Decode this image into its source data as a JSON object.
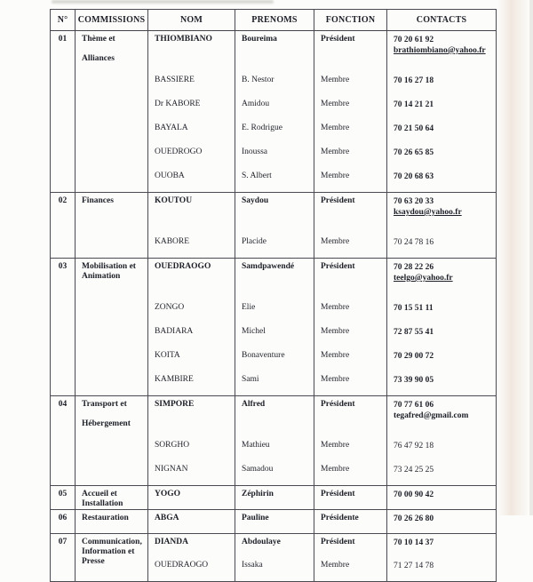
{
  "document": {
    "kind": "scanned committee roster table",
    "columns": [
      "N°",
      "COMMISSIONS",
      "NOM",
      "PRENOMS",
      "FONCTION",
      "CONTACTS"
    ],
    "sections": [
      {
        "no": "01",
        "commission_lines": [
          "Thème et",
          "",
          "Alliances"
        ],
        "members": [
          {
            "nom": "THIOMBIANO",
            "prenoms": "Boureima",
            "fonction": "Président",
            "president": true,
            "gap_after": true,
            "contacts": [
              {
                "text": "70 20 61 92",
                "bold": true
              },
              {
                "text": "brathiombiano@yahoo.fr",
                "bold": true,
                "underline": true
              }
            ]
          },
          {
            "nom": "BASSIERE",
            "prenoms": "B. Nestor",
            "fonction": "Membre",
            "contacts": [
              {
                "text": "70 16 27 18",
                "bold": true
              }
            ]
          },
          {
            "nom": "Dr KABORE",
            "prenoms": "Amidou",
            "fonction": "Membre",
            "contacts": [
              {
                "text": "70 14 21 21",
                "bold": true
              }
            ]
          },
          {
            "nom": "BAYALA",
            "prenoms": "E. Rodrigue",
            "fonction": "Membre",
            "contacts": [
              {
                "text": "70 21 50 64",
                "bold": true
              }
            ]
          },
          {
            "nom": "OUEDROGO",
            "prenoms": "Inoussa",
            "fonction": "Membre",
            "contacts": [
              {
                "text": "70 26 65 85",
                "bold": true
              }
            ]
          },
          {
            "nom": "OUOBA",
            "prenoms": "S. Albert",
            "fonction": "Membre",
            "contacts": [
              {
                "text": "70 20 68 63",
                "bold": true
              }
            ]
          }
        ]
      },
      {
        "no": "02",
        "commission_lines": [
          "Finances"
        ],
        "members": [
          {
            "nom": "KOUTOU",
            "prenoms": "Saydou",
            "fonction": "Président",
            "president": true,
            "gap_after": true,
            "contacts": [
              {
                "text": "70 63 20 33",
                "bold": true
              },
              {
                "text": "ksaydou@yahoo.fr",
                "bold": true,
                "underline": true
              }
            ]
          },
          {
            "nom": "KABORE",
            "prenoms": "Placide",
            "fonction": "Membre",
            "contacts": [
              {
                "text": "70 24 78 16"
              }
            ]
          }
        ]
      },
      {
        "no": "03",
        "commission_lines": [
          "Mobilisation et",
          "Animation"
        ],
        "members": [
          {
            "nom": "OUEDRAOGO",
            "prenoms": "Samdpawendé",
            "fonction": "Président",
            "president": true,
            "gap_after": true,
            "contacts": [
              {
                "text": "70 28 22 26",
                "bold": true
              },
              {
                "text": "teelgo@yahoo.fr",
                "bold": true,
                "underline": true
              }
            ]
          },
          {
            "nom": "ZONGO",
            "prenoms": "Elie",
            "fonction": "Membre",
            "contacts": [
              {
                "text": "70 15 51 11",
                "bold": true
              }
            ]
          },
          {
            "nom": "BADIARA",
            "prenoms": "Michel",
            "fonction": "Membre",
            "contacts": [
              {
                "text": "72 87 55 41",
                "bold": true
              }
            ]
          },
          {
            "nom": "KOITA",
            "prenoms": "Bonaventure",
            "fonction": "Membre",
            "contacts": [
              {
                "text": "70 29 00 72",
                "bold": true
              }
            ]
          },
          {
            "nom": "KAMBIRE",
            "prenoms": "Sami",
            "fonction": "Membre",
            "contacts": [
              {
                "text": "73 39 90 05",
                "bold": true
              }
            ]
          }
        ]
      },
      {
        "no": "04",
        "commission_lines": [
          "Transport et",
          "",
          "Hébergement"
        ],
        "members": [
          {
            "nom": "SIMPORE",
            "prenoms": "Alfred",
            "fonction": "Président",
            "president": true,
            "gap_after": true,
            "contacts": [
              {
                "text": "70 77 61 06",
                "bold": true
              },
              {
                "text": "tegafred@gmail.com",
                "bold": true
              }
            ]
          },
          {
            "nom": "SORGHO",
            "prenoms": "Mathieu",
            "fonction": "Membre",
            "contacts": [
              {
                "text": "76 47 92 18"
              }
            ]
          },
          {
            "nom": "NIGNAN",
            "prenoms": "Samadou",
            "fonction": "Membre",
            "contacts": [
              {
                "text": "73 24 25 25"
              }
            ]
          }
        ]
      },
      {
        "no": "05",
        "commission_lines": [
          "Accueil et",
          "Installation"
        ],
        "members": [
          {
            "nom": "YOGO",
            "prenoms": "Zéphirin",
            "fonction": "Président",
            "president": true,
            "tall": true,
            "contacts": [
              {
                "text": "70 00 90 42",
                "bold": true
              }
            ]
          }
        ]
      },
      {
        "no": "06",
        "commission_lines": [
          "Restauration"
        ],
        "members": [
          {
            "nom": "ABGA",
            "prenoms": "Pauline",
            "fonction": "Présidente",
            "president": true,
            "contacts": [
              {
                "text": "70 26 26 80",
                "bold": true
              }
            ]
          }
        ]
      },
      {
        "no": "07",
        "commission_lines": [
          "Communication,",
          "Information et",
          "Presse"
        ],
        "members": [
          {
            "nom": "DIANDA",
            "prenoms": "Abdoulaye",
            "fonction": "Président",
            "president": true,
            "contacts": [
              {
                "text": "70 10 14 37",
                "bold": true
              }
            ]
          },
          {
            "nom": "OUEDRAOGO",
            "prenoms": "Issaka",
            "fonction": "Membre",
            "contacts": [
              {
                "text": "71 27 14 78"
              }
            ]
          }
        ]
      }
    ]
  }
}
